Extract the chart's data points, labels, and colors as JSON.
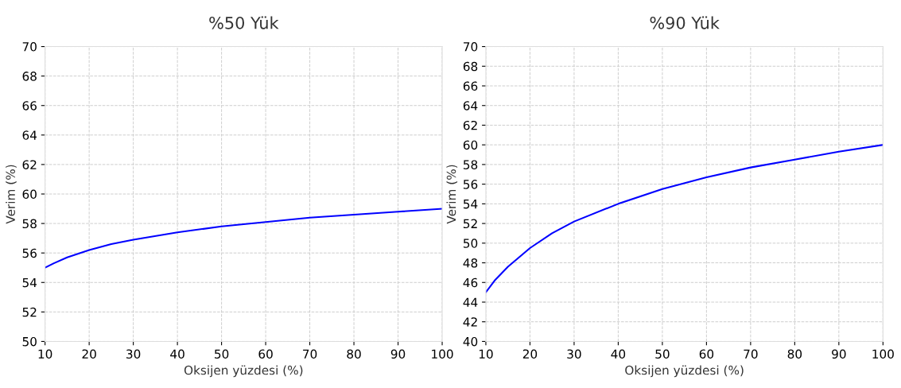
{
  "chart_data": [
    {
      "type": "line",
      "title": "%50 Yük",
      "xlabel": "Oksijen yüzdesi (%)",
      "ylabel": "Verim (%)",
      "x": [
        10,
        12,
        15,
        20,
        25,
        30,
        40,
        50,
        60,
        70,
        80,
        90,
        100
      ],
      "series": [
        {
          "color": "#0000ff",
          "values": [
            55,
            55.3,
            55.7,
            56.2,
            56.6,
            56.9,
            57.4,
            57.8,
            58.1,
            58.4,
            58.6,
            58.8,
            59
          ]
        }
      ],
      "xlim": [
        10,
        100
      ],
      "xticks": [
        10,
        20,
        30,
        40,
        50,
        60,
        70,
        80,
        90,
        100
      ],
      "ylim": [
        50,
        70
      ],
      "yticks": [
        50,
        52,
        54,
        56,
        58,
        60,
        62,
        64,
        66,
        68,
        70
      ],
      "grid": true
    },
    {
      "type": "line",
      "title": "%90 Yük",
      "xlabel": "Oksijen yüzdesi (%)",
      "ylabel": "Verim (%)",
      "x": [
        10,
        12,
        15,
        20,
        25,
        30,
        40,
        50,
        60,
        70,
        80,
        90,
        100
      ],
      "series": [
        {
          "color": "#0000ff",
          "values": [
            45,
            46.2,
            47.6,
            49.5,
            51,
            52.2,
            54,
            55.5,
            56.7,
            57.7,
            58.5,
            59.3,
            60
          ]
        }
      ],
      "xlim": [
        10,
        100
      ],
      "xticks": [
        10,
        20,
        30,
        40,
        50,
        60,
        70,
        80,
        90,
        100
      ],
      "ylim": [
        40,
        70
      ],
      "yticks": [
        40,
        42,
        44,
        46,
        48,
        50,
        52,
        54,
        56,
        58,
        60,
        62,
        64,
        66,
        68,
        70
      ],
      "grid": true
    }
  ]
}
